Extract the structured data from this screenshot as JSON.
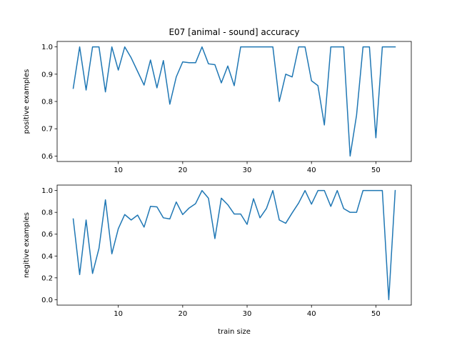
{
  "chart_data": [
    {
      "type": "line",
      "title": "E07 [animal - sound] accuracy",
      "xlabel": "",
      "ylabel": "positive examples",
      "xlim": [
        0.5,
        55.5
      ],
      "ylim": [
        0.58,
        1.02
      ],
      "xticks": [
        10,
        20,
        30,
        40,
        50
      ],
      "yticks": [
        0.6,
        0.7,
        0.8,
        0.9,
        1.0
      ],
      "ytick_labels": [
        "0.6",
        "0.7",
        "0.8",
        "0.9",
        "1.0"
      ],
      "grid": false,
      "line_color": "#1f77b4",
      "x": [
        3,
        4,
        5,
        6,
        7,
        8,
        9,
        10,
        11,
        12,
        13,
        14,
        15,
        16,
        17,
        18,
        19,
        20,
        21,
        22,
        23,
        24,
        25,
        26,
        27,
        28,
        29,
        30,
        31,
        32,
        33,
        34,
        35,
        36,
        37,
        38,
        39,
        40,
        41,
        42,
        43,
        44,
        45,
        46,
        47,
        48,
        49,
        50,
        51,
        52,
        53
      ],
      "values": [
        0.848,
        1.0,
        0.842,
        1.0,
        1.0,
        0.835,
        1.0,
        0.915,
        1.0,
        0.96,
        0.91,
        0.86,
        0.952,
        0.85,
        0.95,
        0.79,
        0.89,
        0.945,
        0.942,
        0.942,
        1.0,
        0.938,
        0.935,
        0.868,
        0.93,
        0.858,
        1.0,
        1.0,
        1.0,
        1.0,
        1.0,
        1.0,
        0.8,
        0.9,
        0.89,
        1.0,
        1.0,
        0.876,
        0.858,
        0.714,
        1.0,
        1.0,
        1.0,
        0.6,
        0.75,
        1.0,
        1.0,
        0.667,
        1.0,
        1.0,
        1.0
      ]
    },
    {
      "type": "line",
      "title": "",
      "xlabel": "train size",
      "ylabel": "negitive examples",
      "xlim": [
        0.5,
        55.5
      ],
      "ylim": [
        -0.05,
        1.05
      ],
      "xticks": [
        10,
        20,
        30,
        40,
        50
      ],
      "yticks": [
        0.0,
        0.2,
        0.4,
        0.6,
        0.8,
        1.0
      ],
      "ytick_labels": [
        "0.0",
        "0.2",
        "0.4",
        "0.6",
        "0.8",
        "1.0"
      ],
      "grid": false,
      "line_color": "#1f77b4",
      "x": [
        3,
        4,
        5,
        6,
        7,
        8,
        9,
        10,
        11,
        12,
        13,
        14,
        15,
        16,
        17,
        18,
        19,
        20,
        21,
        22,
        23,
        24,
        25,
        26,
        27,
        28,
        29,
        30,
        31,
        32,
        33,
        34,
        35,
        36,
        37,
        38,
        39,
        40,
        41,
        42,
        43,
        44,
        45,
        46,
        47,
        48,
        49,
        50,
        51,
        52,
        53
      ],
      "values": [
        0.74,
        0.23,
        0.73,
        0.24,
        0.47,
        0.915,
        0.42,
        0.65,
        0.78,
        0.73,
        0.775,
        0.665,
        0.855,
        0.85,
        0.75,
        0.74,
        0.895,
        0.78,
        0.84,
        0.88,
        1.0,
        0.93,
        0.56,
        0.93,
        0.87,
        0.785,
        0.785,
        0.69,
        0.925,
        0.75,
        0.835,
        1.0,
        0.73,
        0.7,
        0.795,
        0.885,
        1.0,
        0.875,
        1.0,
        1.0,
        0.855,
        1.0,
        0.835,
        0.8,
        0.8,
        1.0,
        1.0,
        1.0,
        1.0,
        0.0,
        1.0
      ]
    }
  ]
}
